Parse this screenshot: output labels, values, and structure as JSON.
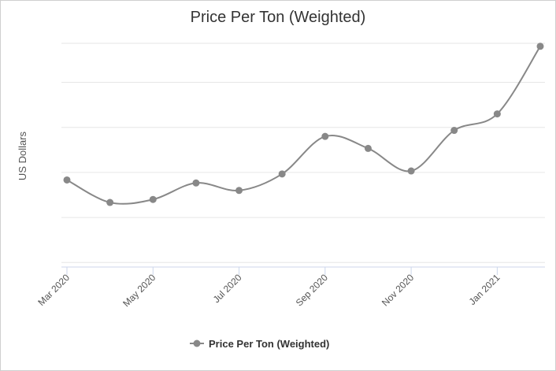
{
  "chart_data": {
    "type": "line",
    "title": "Price Per Ton (Weighted)",
    "xlabel": "",
    "ylabel": "US Dollars",
    "x_tick_labels": [
      "Mar 2020",
      "May 2020",
      "Jul 2020",
      "Sep 2020",
      "Nov 2020",
      "Jan 2021"
    ],
    "x": [
      "2020-03",
      "2020-04",
      "2020-05",
      "2020-06",
      "2020-07",
      "2020-08",
      "2020-09",
      "2020-10",
      "2020-11",
      "2020-12",
      "2021-01",
      "2021-02"
    ],
    "series": [
      {
        "name": "Price Per Ton (Weighted)",
        "values": [
          2.5,
          1.0,
          1.2,
          2.3,
          1.8,
          2.9,
          5.4,
          4.6,
          3.1,
          5.8,
          6.9,
          11.4
        ]
      }
    ],
    "ylim": [
      -3.3,
      11.6
    ],
    "y_gridlines": [
      -3.0,
      0.0,
      3.0,
      6.0,
      9.0,
      12.0
    ],
    "grid": true,
    "smooth": true,
    "legend_position": "bottom-center",
    "colors": {
      "line": "#888888",
      "marker": "#888888",
      "grid": "#e6e6e6",
      "axis": "#ccd6eb"
    }
  }
}
